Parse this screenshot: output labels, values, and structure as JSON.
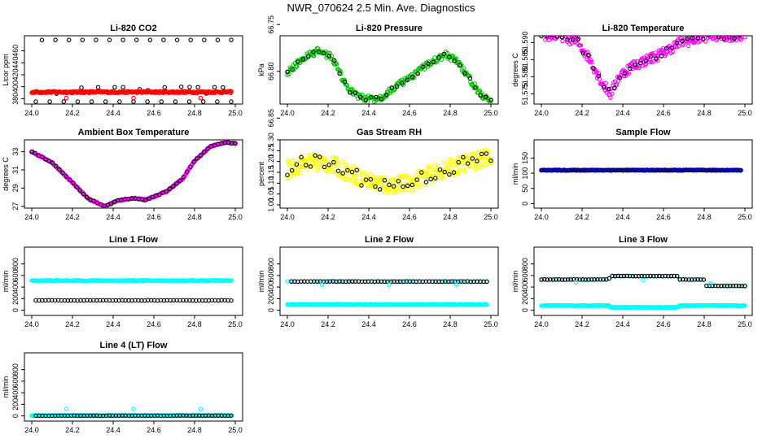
{
  "page_title": "NWR_070624  2.5 Min. Ave. Diagnostics",
  "colors": {
    "black": "#000000",
    "red": "#ff0000",
    "green": "#00c800",
    "magenta": "#ff00ff",
    "yellow": "#ffff00",
    "blue": "#0000ff",
    "cyan": "#00ffff"
  },
  "chart_data": [
    {
      "type": "scatter",
      "title": "Li-820 CO2",
      "ylabel": "Licor ppm",
      "xlim": [
        24.0,
        25.0
      ],
      "ylim": [
        371,
        485
      ],
      "xticks": [
        "24.0",
        "24.2",
        "24.4",
        "24.6",
        "24.8",
        "25.0"
      ],
      "yticks": [
        "380",
        "400",
        "420",
        "440",
        "460"
      ],
      "series": [
        {
          "name": "black-high",
          "color": "#000000",
          "x_start": 24.05,
          "x_end": 24.98,
          "n": 15,
          "y": 478,
          "jitter": 0
        },
        {
          "name": "black-mid",
          "color": "#000000",
          "x_start": 24.04,
          "x_end": 24.98,
          "n": 24,
          "y": 394,
          "jitter": 6
        },
        {
          "name": "black-low",
          "color": "#000000",
          "x_start": 24.02,
          "x_end": 24.98,
          "n": 15,
          "y": 375,
          "jitter": 0
        },
        {
          "name": "red-band",
          "color": "#ff0000",
          "x_start": 24.0,
          "x_end": 24.98,
          "n": 260,
          "y": 391,
          "jitter": 1.5
        },
        {
          "name": "red-outliers",
          "color": "#ff0000",
          "x": [
            24.17,
            24.5,
            24.83
          ],
          "y_values": [
            381,
            381,
            381
          ]
        }
      ]
    },
    {
      "type": "scatter",
      "title": "Li-820 Pressure",
      "ylabel": "kPa",
      "xlim": [
        24.0,
        25.0
      ],
      "ylim": [
        66.835,
        66.762
      ],
      "xticks": [
        "24.0",
        "24.2",
        "24.4",
        "24.6",
        "24.8",
        "25.0"
      ],
      "yticks": [
        "66.75",
        "66.80",
        "66.85"
      ],
      "series": [
        {
          "name": "green",
          "color": "#00c800",
          "x": [
            24.0,
            24.08,
            24.15,
            24.22,
            24.3,
            24.38,
            24.46,
            24.54,
            24.62,
            24.7,
            24.78,
            24.84,
            24.9,
            24.95,
            25.0
          ],
          "y_values": [
            66.802,
            66.785,
            66.778,
            66.785,
            66.82,
            66.83,
            66.828,
            66.815,
            66.805,
            66.79,
            66.782,
            66.79,
            66.81,
            66.825,
            66.83
          ],
          "n": 240,
          "jitter": 0.0035
        },
        {
          "name": "black",
          "color": "#000000",
          "x": [
            24.0,
            24.08,
            24.15,
            24.22,
            24.3,
            24.38,
            24.46,
            24.54,
            24.62,
            24.7,
            24.78,
            24.84,
            24.9,
            24.95,
            25.0
          ],
          "y_values": [
            66.802,
            66.785,
            66.778,
            66.785,
            66.82,
            66.83,
            66.828,
            66.815,
            66.805,
            66.79,
            66.782,
            66.79,
            66.81,
            66.825,
            66.83
          ],
          "n": 40,
          "jitter": 0.002
        }
      ]
    },
    {
      "type": "scatter",
      "title": "Li-820 Temperature",
      "ylabel": "degrees C",
      "xlim": [
        24.0,
        25.0
      ],
      "ylim": [
        51.572,
        51.592
      ],
      "xticks": [
        "24.0",
        "24.2",
        "24.4",
        "24.6",
        "24.8",
        "25.0"
      ],
      "yticks": [
        "51.575",
        "51.580",
        "51.585",
        "51.590"
      ],
      "series": [
        {
          "name": "magenta",
          "color": "#ff00ff",
          "x": [
            24.0,
            24.1,
            24.18,
            24.24,
            24.3,
            24.34,
            24.38,
            24.44,
            24.52,
            24.6,
            24.68,
            24.76,
            24.82,
            24.9,
            25.0
          ],
          "y_values": [
            51.592,
            51.592,
            51.59,
            51.585,
            51.578,
            51.575,
            51.58,
            51.583,
            51.585,
            51.587,
            51.59,
            51.591,
            51.592,
            51.592,
            51.592
          ],
          "n": 260,
          "jitter": 0.0015
        },
        {
          "name": "black",
          "color": "#000000",
          "x": [
            24.0,
            24.1,
            24.18,
            24.24,
            24.3,
            24.34,
            24.38,
            24.44,
            24.52,
            24.6,
            24.68,
            24.76,
            24.82,
            24.9,
            25.0
          ],
          "y_values": [
            51.592,
            51.592,
            51.59,
            51.585,
            51.578,
            51.575,
            51.58,
            51.583,
            51.585,
            51.587,
            51.59,
            51.591,
            51.592,
            51.592,
            51.592
          ],
          "n": 40,
          "jitter": 0.001
        }
      ]
    },
    {
      "type": "scatter",
      "title": "Ambient Box Temperature",
      "ylabel": "degrees C",
      "xlim": [
        24.0,
        25.0
      ],
      "ylim": [
        26.8,
        34.3
      ],
      "xticks": [
        "24.0",
        "24.2",
        "24.4",
        "24.6",
        "24.8",
        "25.0"
      ],
      "yticks": [
        "27",
        "29",
        "31",
        "33"
      ],
      "series": [
        {
          "name": "magenta",
          "color": "#ff00ff",
          "x": [
            24.0,
            24.1,
            24.2,
            24.28,
            24.36,
            24.42,
            24.5,
            24.56,
            24.66,
            24.74,
            24.8,
            24.88,
            24.95,
            25.0
          ],
          "y_values": [
            33.0,
            31.8,
            29.6,
            27.8,
            27.0,
            27.6,
            27.9,
            27.7,
            28.6,
            30.0,
            32.0,
            33.6,
            34.0,
            33.9
          ],
          "n": 280,
          "jitter": 0.06
        },
        {
          "name": "black",
          "color": "#000000",
          "x": [
            24.0,
            24.1,
            24.2,
            24.28,
            24.36,
            24.42,
            24.5,
            24.56,
            24.66,
            24.74,
            24.8,
            24.88,
            24.95,
            25.0
          ],
          "y_values": [
            33.0,
            31.8,
            29.6,
            27.8,
            27.0,
            27.6,
            27.9,
            27.7,
            28.6,
            30.0,
            32.0,
            33.6,
            34.0,
            33.9
          ],
          "n": 60,
          "jitter": 0.04
        }
      ]
    },
    {
      "type": "scatter",
      "title": "Gas Stream RH",
      "ylabel": "percent",
      "xlim": [
        24.0,
        25.0
      ],
      "ylim": [
        0.985,
        1.3
      ],
      "xticks": [
        "24.0",
        "24.2",
        "24.4",
        "24.6",
        "24.8",
        "25.0"
      ],
      "yticks": [
        "1.00",
        "1.05",
        "1.10",
        "1.15",
        "1.20",
        "1.25",
        "1.30"
      ],
      "series": [
        {
          "name": "yellow",
          "color": "#ffff00",
          "x": [
            24.0,
            24.1,
            24.2,
            24.3,
            24.4,
            24.5,
            24.6,
            24.7,
            24.8,
            24.9,
            25.0
          ],
          "y_values": [
            1.16,
            1.2,
            1.19,
            1.15,
            1.11,
            1.09,
            1.1,
            1.14,
            1.17,
            1.2,
            1.22
          ],
          "n": 320,
          "jitter": 0.04
        },
        {
          "name": "black",
          "color": "#000000",
          "x": [
            24.0,
            24.1,
            24.2,
            24.3,
            24.4,
            24.5,
            24.6,
            24.7,
            24.8,
            24.9,
            25.0
          ],
          "y_values": [
            1.16,
            1.2,
            1.19,
            1.15,
            1.11,
            1.09,
            1.1,
            1.14,
            1.17,
            1.2,
            1.22
          ],
          "n": 45,
          "jitter": 0.035
        }
      ]
    },
    {
      "type": "scatter",
      "title": "Sample Flow",
      "ylabel": "ml/min",
      "xlim": [
        24.0,
        25.0
      ],
      "ylim": [
        -15,
        210
      ],
      "xticks": [
        "24.0",
        "24.2",
        "24.4",
        "24.6",
        "24.8",
        "25.0"
      ],
      "yticks": [
        "0",
        "50",
        "100",
        "150"
      ],
      "series": [
        {
          "name": "blue",
          "color": "#0000ff",
          "x_start": 24.0,
          "x_end": 24.98,
          "n": 260,
          "y": 110,
          "jitter": 1.2
        },
        {
          "name": "black",
          "color": "#000000",
          "x_start": 24.0,
          "x_end": 24.98,
          "n": 60,
          "y": 110,
          "jitter": 1.0
        }
      ]
    },
    {
      "type": "scatter",
      "title": "Line 1 Flow",
      "ylabel": "ml/min",
      "xlim": [
        24.0,
        25.0
      ],
      "ylim": [
        -90,
        1090
      ],
      "xticks": [
        "24.0",
        "24.2",
        "24.4",
        "24.6",
        "24.8",
        "25.0"
      ],
      "yticks": [
        "0",
        "200",
        "400",
        "600",
        "800"
      ],
      "series": [
        {
          "name": "cyan",
          "color": "#00ffff",
          "x_start": 24.0,
          "x_end": 24.98,
          "n": 260,
          "y": 510,
          "jitter": 8
        },
        {
          "name": "black",
          "color": "#000000",
          "x_start": 24.02,
          "x_end": 24.98,
          "n": 62,
          "y": 170,
          "jitter": 3
        }
      ]
    },
    {
      "type": "scatter",
      "title": "Line 2 Flow",
      "ylabel": "ml/min",
      "xlim": [
        24.0,
        25.0
      ],
      "ylim": [
        -90,
        1090
      ],
      "xticks": [
        "24.0",
        "24.2",
        "24.4",
        "24.6",
        "24.8",
        "25.0"
      ],
      "yticks": [
        "0",
        "200",
        "400",
        "600",
        "800"
      ],
      "series": [
        {
          "name": "cyan-low",
          "color": "#00ffff",
          "x_start": 24.0,
          "x_end": 24.98,
          "n": 260,
          "y": 100,
          "jitter": 6
        },
        {
          "name": "cyan-high",
          "color": "#00ffff",
          "x_start": 24.0,
          "x_end": 24.98,
          "n": 60,
          "y": 500,
          "jitter": 4
        },
        {
          "name": "black",
          "color": "#000000",
          "x_start": 24.02,
          "x_end": 24.98,
          "n": 62,
          "y": 495,
          "jitter": 3
        },
        {
          "name": "cyan-outliers",
          "color": "#00ffff",
          "x": [
            24.17,
            24.5,
            24.83
          ],
          "y_values": [
            440,
            440,
            440
          ]
        }
      ]
    },
    {
      "type": "scatter",
      "title": "Line 3 Flow",
      "ylabel": "ml/min",
      "xlim": [
        24.0,
        25.0
      ],
      "ylim": [
        -90,
        1090
      ],
      "xticks": [
        "24.0",
        "24.2",
        "24.4",
        "24.6",
        "24.8",
        "25.0"
      ],
      "yticks": [
        "0",
        "200",
        "400",
        "600",
        "800"
      ],
      "series": [
        {
          "name": "cyan-low",
          "color": "#00ffff",
          "x": [
            24.0,
            24.33,
            24.34,
            24.67,
            24.68,
            25.0
          ],
          "y_values": [
            80,
            80,
            50,
            50,
            80,
            80
          ],
          "n": 260,
          "jitter": 5
        },
        {
          "name": "cyan-high",
          "color": "#00ffff",
          "x": [
            24.0,
            24.33,
            24.34,
            24.67,
            24.68,
            24.8,
            24.81,
            25.0
          ],
          "y_values": [
            530,
            530,
            590,
            590,
            530,
            530,
            420,
            420
          ],
          "n": 70,
          "jitter": 4
        },
        {
          "name": "black",
          "color": "#000000",
          "x": [
            24.0,
            24.33,
            24.34,
            24.67,
            24.68,
            24.8,
            24.81,
            25.0
          ],
          "y_values": [
            530,
            530,
            590,
            590,
            530,
            530,
            420,
            420
          ],
          "n": 70,
          "jitter": 3
        },
        {
          "name": "cyan-outliers",
          "color": "#00ffff",
          "x": [
            24.17,
            24.5,
            24.83
          ],
          "y_values": [
            480,
            520,
            460
          ]
        }
      ]
    },
    {
      "type": "scatter",
      "title": "Line 4 (LT) Flow",
      "ylabel": "ml/min",
      "xlim": [
        24.0,
        25.0
      ],
      "ylim": [
        -90,
        1090
      ],
      "xticks": [
        "24.0",
        "24.2",
        "24.4",
        "24.6",
        "24.8",
        "25.0"
      ],
      "yticks": [
        "0",
        "200",
        "400",
        "600",
        "800"
      ],
      "series": [
        {
          "name": "cyan",
          "color": "#00ffff",
          "x_start": 24.0,
          "x_end": 24.98,
          "n": 260,
          "y": 5,
          "jitter": 3
        },
        {
          "name": "black",
          "color": "#000000",
          "x_start": 24.02,
          "x_end": 24.98,
          "n": 62,
          "y": 5,
          "jitter": 2
        },
        {
          "name": "cyan-outliers",
          "color": "#00ffff",
          "x": [
            24.17,
            24.5,
            24.83
          ],
          "y_values": [
            120,
            120,
            120
          ]
        }
      ]
    }
  ]
}
